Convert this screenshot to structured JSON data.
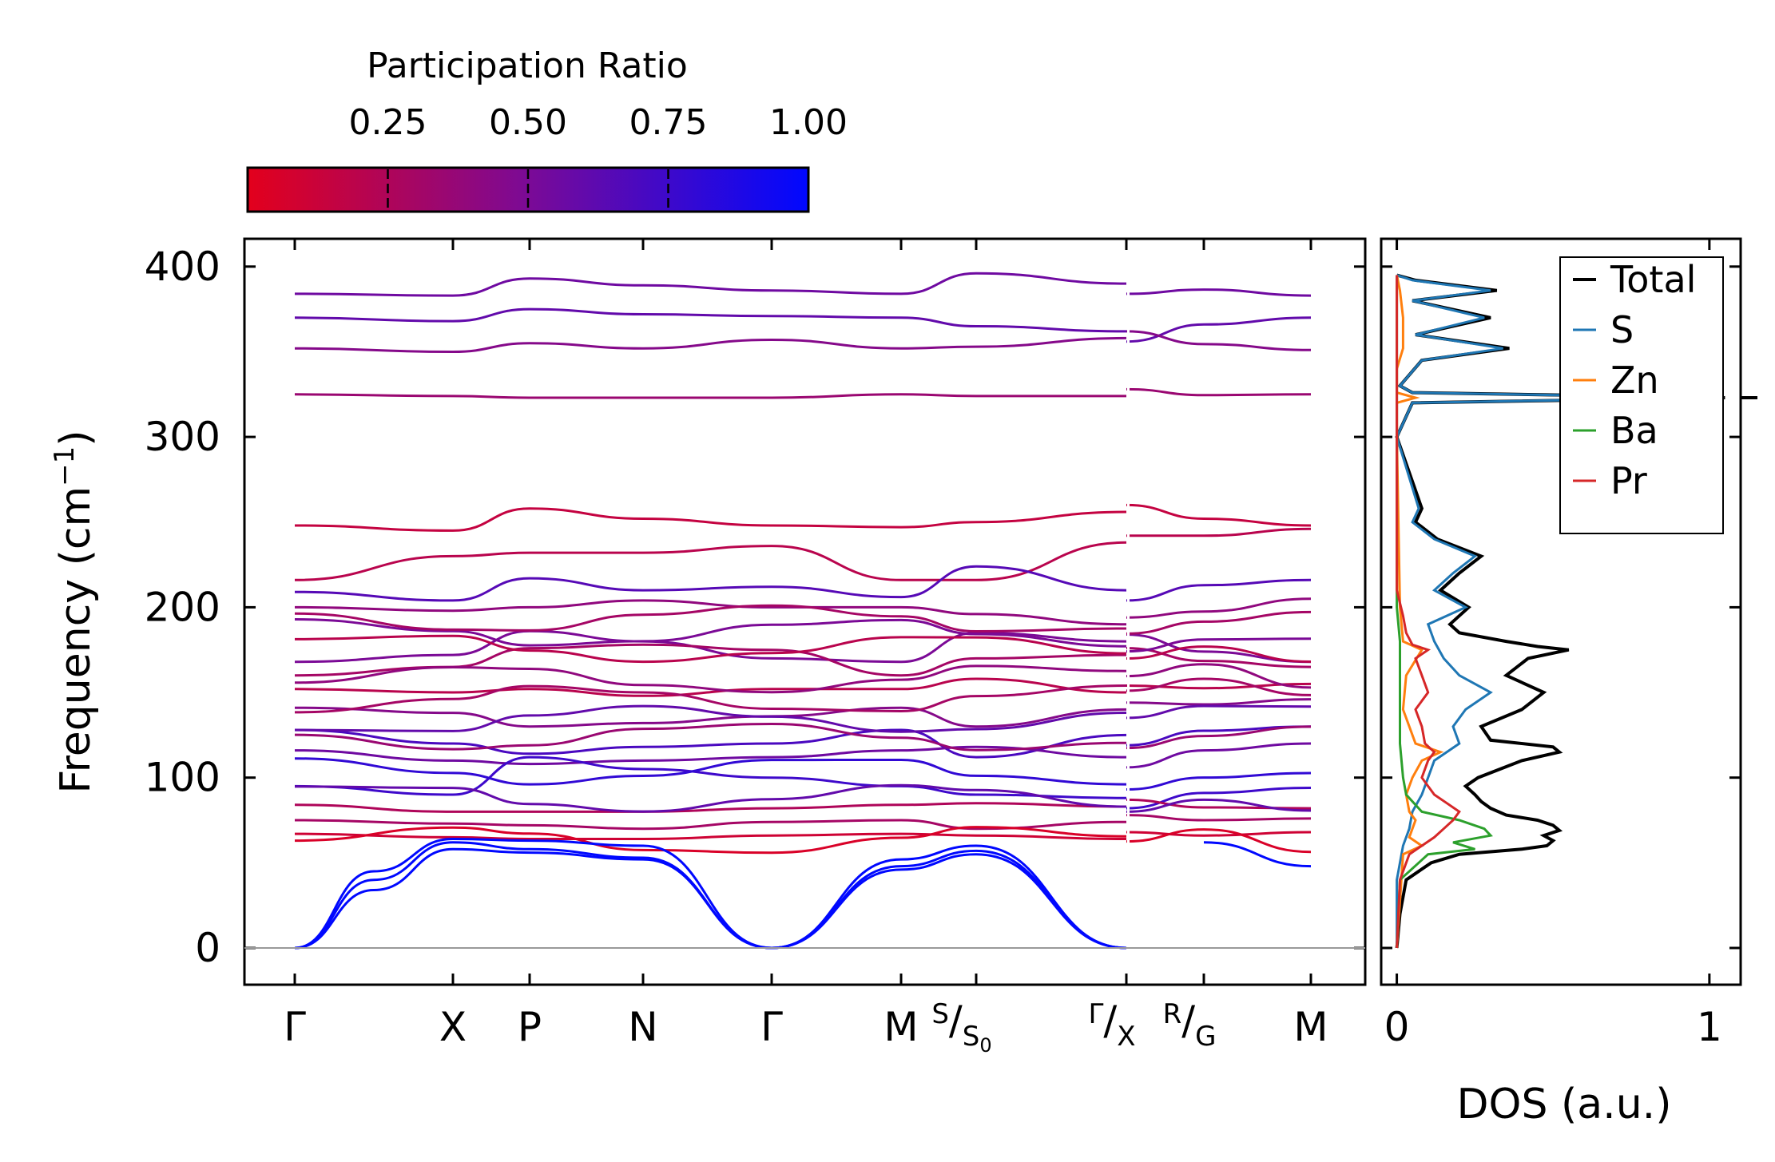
{
  "chart_data": [
    {
      "type": "line",
      "name": "phonon-band-structure",
      "ylabel": "Frequency (cm",
      "ylabel_sup": "−1",
      "ylabel_close": ")",
      "ylim": [
        -20,
        415
      ],
      "yticks": [
        0,
        100,
        200,
        300,
        400
      ],
      "ytick_labels": [
        "0",
        "100",
        "200",
        "300",
        "400"
      ],
      "x_segments": [
        {
          "from": 0,
          "to": 6.5
        },
        {
          "from": 7.4,
          "to": 9.0
        }
      ],
      "xlim": [
        -0.32,
        9.3
      ],
      "kpoints": [
        {
          "x": 0,
          "label": "Γ",
          "sup": "",
          "sub": ""
        },
        {
          "x": 1.0,
          "label": "X",
          "sup": "",
          "sub": ""
        },
        {
          "x": 1.5,
          "label": "P",
          "sup": "",
          "sub": ""
        },
        {
          "x": 2.2,
          "label": "N",
          "sup": "",
          "sub": ""
        },
        {
          "x": 3.0,
          "label": "Γ",
          "sup": "",
          "sub": ""
        },
        {
          "x": 3.8,
          "label": "M",
          "sup": "",
          "sub": ""
        },
        {
          "x": 4.3,
          "label": "",
          "sup": "S",
          "sub": "S",
          "sub2": "0"
        },
        {
          "x": 5.3,
          "label": "",
          "sup": "Γ",
          "sub": "X",
          "sub2": ""
        },
        {
          "x": 5.8,
          "label": "",
          "sup": "R",
          "sub": "G",
          "sub2": ""
        },
        {
          "x": 6.5,
          "label": "M",
          "sup": "",
          "sub": "",
          "sub2": ""
        }
      ],
      "acoustic_branches": [
        {
          "x": [
            0,
            0.5,
            1.0,
            1.5,
            2.2,
            3.0,
            3.8,
            4.3,
            5.3
          ],
          "y": [
            0,
            45,
            64,
            63,
            60,
            0,
            52,
            60,
            0
          ]
        },
        {
          "x": [
            0,
            0.5,
            1.0,
            1.5,
            2.2,
            3.0,
            3.8,
            4.3,
            5.3
          ],
          "y": [
            0,
            40,
            62,
            58,
            53,
            0,
            48,
            57,
            0
          ]
        },
        {
          "x": [
            0,
            0.5,
            1.0,
            1.5,
            2.2,
            3.0,
            3.8,
            4.3,
            5.3
          ],
          "y": [
            0,
            34,
            58,
            56,
            52,
            0,
            46,
            55,
            0
          ]
        }
      ],
      "optical_branches_sample": [
        {
          "y": [
            384,
            383,
            393,
            389,
            386,
            384,
            396,
            390,
            383
          ],
          "pr": 0.55
        },
        {
          "y": [
            370,
            368,
            375,
            372,
            371,
            370,
            365,
            362,
            370
          ],
          "pr": 0.6
        },
        {
          "y": [
            352,
            350,
            355,
            352,
            357,
            352,
            353,
            358,
            351
          ],
          "pr": 0.45
        },
        {
          "y": [
            325,
            324,
            323,
            323,
            323,
            325,
            324,
            324,
            325
          ],
          "pr": 0.35
        },
        {
          "y": [
            248,
            245,
            258,
            252,
            248,
            247,
            250,
            256,
            248
          ],
          "pr": 0.15
        },
        {
          "y": [
            216,
            230,
            232,
            232,
            236,
            216,
            216,
            238,
            246
          ],
          "pr": 0.2
        },
        {
          "y": [
            209,
            204,
            217,
            210,
            212,
            206,
            224,
            210,
            216
          ],
          "pr": 0.65
        },
        {
          "y": [
            200,
            198,
            200,
            204,
            200,
            200,
            196,
            190,
            205
          ],
          "pr": 0.4
        },
        {
          "y": [
            168,
            172,
            186,
            180,
            170,
            168,
            185,
            180,
            168
          ],
          "pr": 0.5
        },
        {
          "y": [
            160,
            165,
            176,
            178,
            175,
            160,
            170,
            172,
            165
          ],
          "pr": 0.3
        },
        {
          "y": [
            152,
            150,
            152,
            148,
            152,
            152,
            158,
            150,
            155
          ],
          "pr": 0.2
        },
        {
          "y": [
            141,
            138,
            130,
            132,
            136,
            141,
            130,
            140,
            146
          ],
          "pr": 0.45
        },
        {
          "y": [
            128,
            120,
            114,
            118,
            120,
            128,
            112,
            125,
            130
          ],
          "pr": 0.7
        },
        {
          "y": [
            116,
            110,
            108,
            110,
            112,
            116,
            118,
            112,
            120
          ],
          "pr": 0.55
        },
        {
          "y": [
            95,
            90,
            112,
            105,
            100,
            95,
            90,
            88,
            94
          ],
          "pr": 0.75
        },
        {
          "y": [
            84,
            80,
            80,
            80,
            82,
            84,
            85,
            83,
            82
          ],
          "pr": 0.25
        },
        {
          "y": [
            75,
            73,
            72,
            70,
            74,
            75,
            70,
            74,
            76
          ],
          "pr": 0.3
        },
        {
          "y": [
            67,
            65,
            64,
            64,
            66,
            67,
            66,
            64,
            68
          ],
          "pr": 0.1
        }
      ],
      "colorbar": {
        "title": "Participation Ratio",
        "range": [
          0.0,
          1.0
        ],
        "ticks": [
          0.25,
          0.5,
          0.75,
          1.0
        ],
        "tick_labels": [
          "0.25",
          "0.50",
          "0.75",
          "1.00"
        ],
        "low_color": "#e3001c",
        "mid_color": "#7b0a96",
        "high_color": "#0008ff"
      }
    },
    {
      "type": "line",
      "name": "density-of-states",
      "xlabel": "DOS (a.u.)",
      "xlim": [
        -0.05,
        1.1
      ],
      "xticks": [
        0,
        1
      ],
      "xtick_labels": [
        "0",
        "1"
      ],
      "ylim": [
        -20,
        415
      ],
      "legend": {
        "position": "top-right",
        "entries": [
          "Total",
          "S",
          "Zn",
          "Ba",
          "Pr"
        ]
      },
      "series": [
        {
          "name": "Total",
          "color": "#000000",
          "y": [
            0,
            20,
            40,
            50,
            55,
            58,
            60,
            63,
            66,
            69,
            72,
            75,
            78,
            82,
            86,
            90,
            95,
            100,
            110,
            115,
            118,
            122,
            130,
            140,
            150,
            160,
            170,
            175,
            177,
            180,
            185,
            190,
            200,
            210,
            220,
            230,
            240,
            250,
            258,
            300,
            320,
            323,
            326,
            330,
            345,
            352,
            360,
            370,
            380,
            386,
            392,
            395
          ],
          "v": [
            0,
            0.01,
            0.03,
            0.11,
            0.2,
            0.4,
            0.48,
            0.5,
            0.47,
            0.52,
            0.5,
            0.45,
            0.35,
            0.3,
            0.27,
            0.25,
            0.22,
            0.26,
            0.4,
            0.52,
            0.5,
            0.3,
            0.27,
            0.4,
            0.47,
            0.35,
            0.42,
            0.55,
            0.45,
            0.35,
            0.2,
            0.17,
            0.23,
            0.14,
            0.2,
            0.27,
            0.13,
            0.06,
            0.08,
            0.0,
            0.05,
            1.05,
            0.05,
            0.01,
            0.08,
            0.36,
            0.06,
            0.3,
            0.05,
            0.32,
            0.06,
            0.0
          ]
        },
        {
          "name": "S",
          "color": "#1f77b4",
          "y": [
            0,
            40,
            60,
            70,
            80,
            90,
            100,
            110,
            120,
            130,
            140,
            150,
            160,
            170,
            180,
            190,
            200,
            210,
            220,
            230,
            240,
            250,
            258,
            300,
            320,
            323,
            326,
            330,
            345,
            352,
            360,
            370,
            380,
            386,
            392,
            395
          ],
          "v": [
            0,
            0.0,
            0.02,
            0.04,
            0.05,
            0.08,
            0.1,
            0.12,
            0.2,
            0.18,
            0.22,
            0.3,
            0.2,
            0.15,
            0.12,
            0.1,
            0.22,
            0.12,
            0.18,
            0.25,
            0.12,
            0.05,
            0.07,
            0.0,
            0.05,
            1.0,
            0.05,
            0.01,
            0.08,
            0.34,
            0.06,
            0.28,
            0.05,
            0.3,
            0.05,
            0.0
          ]
        },
        {
          "name": "Zn",
          "color": "#ff7f0e",
          "y": [
            0,
            55,
            60,
            65,
            70,
            75,
            80,
            90,
            100,
            110,
            115,
            120,
            140,
            160,
            175,
            180,
            200,
            300,
            320,
            323,
            326,
            340,
            352,
            370,
            386,
            395
          ],
          "v": [
            0,
            0.02,
            0.08,
            0.04,
            0.05,
            0.06,
            0.04,
            0.03,
            0.05,
            0.08,
            0.14,
            0.06,
            0.02,
            0.03,
            0.08,
            0.02,
            0.01,
            0.0,
            0.0,
            0.06,
            0.0,
            0.0,
            0.02,
            0.02,
            0.01,
            0.0
          ]
        },
        {
          "name": "Ba",
          "color": "#2ca02c",
          "y": [
            0,
            40,
            55,
            58,
            62,
            66,
            70,
            75,
            80,
            90,
            100,
            120,
            150,
            180,
            200,
            210,
            395
          ],
          "v": [
            0,
            0.01,
            0.1,
            0.25,
            0.18,
            0.3,
            0.28,
            0.2,
            0.08,
            0.03,
            0.02,
            0.01,
            0.01,
            0.01,
            0.0,
            0.0,
            0.0
          ]
        },
        {
          "name": "Pr",
          "color": "#d62728",
          "y": [
            0,
            40,
            55,
            60,
            65,
            70,
            75,
            80,
            85,
            90,
            95,
            100,
            110,
            115,
            120,
            130,
            140,
            150,
            160,
            170,
            175,
            178,
            185,
            195,
            210,
            395
          ],
          "v": [
            0,
            0.01,
            0.04,
            0.08,
            0.12,
            0.15,
            0.18,
            0.2,
            0.16,
            0.12,
            0.1,
            0.08,
            0.1,
            0.12,
            0.09,
            0.08,
            0.06,
            0.1,
            0.08,
            0.06,
            0.1,
            0.05,
            0.03,
            0.02,
            0.0,
            0.0
          ]
        }
      ]
    }
  ]
}
